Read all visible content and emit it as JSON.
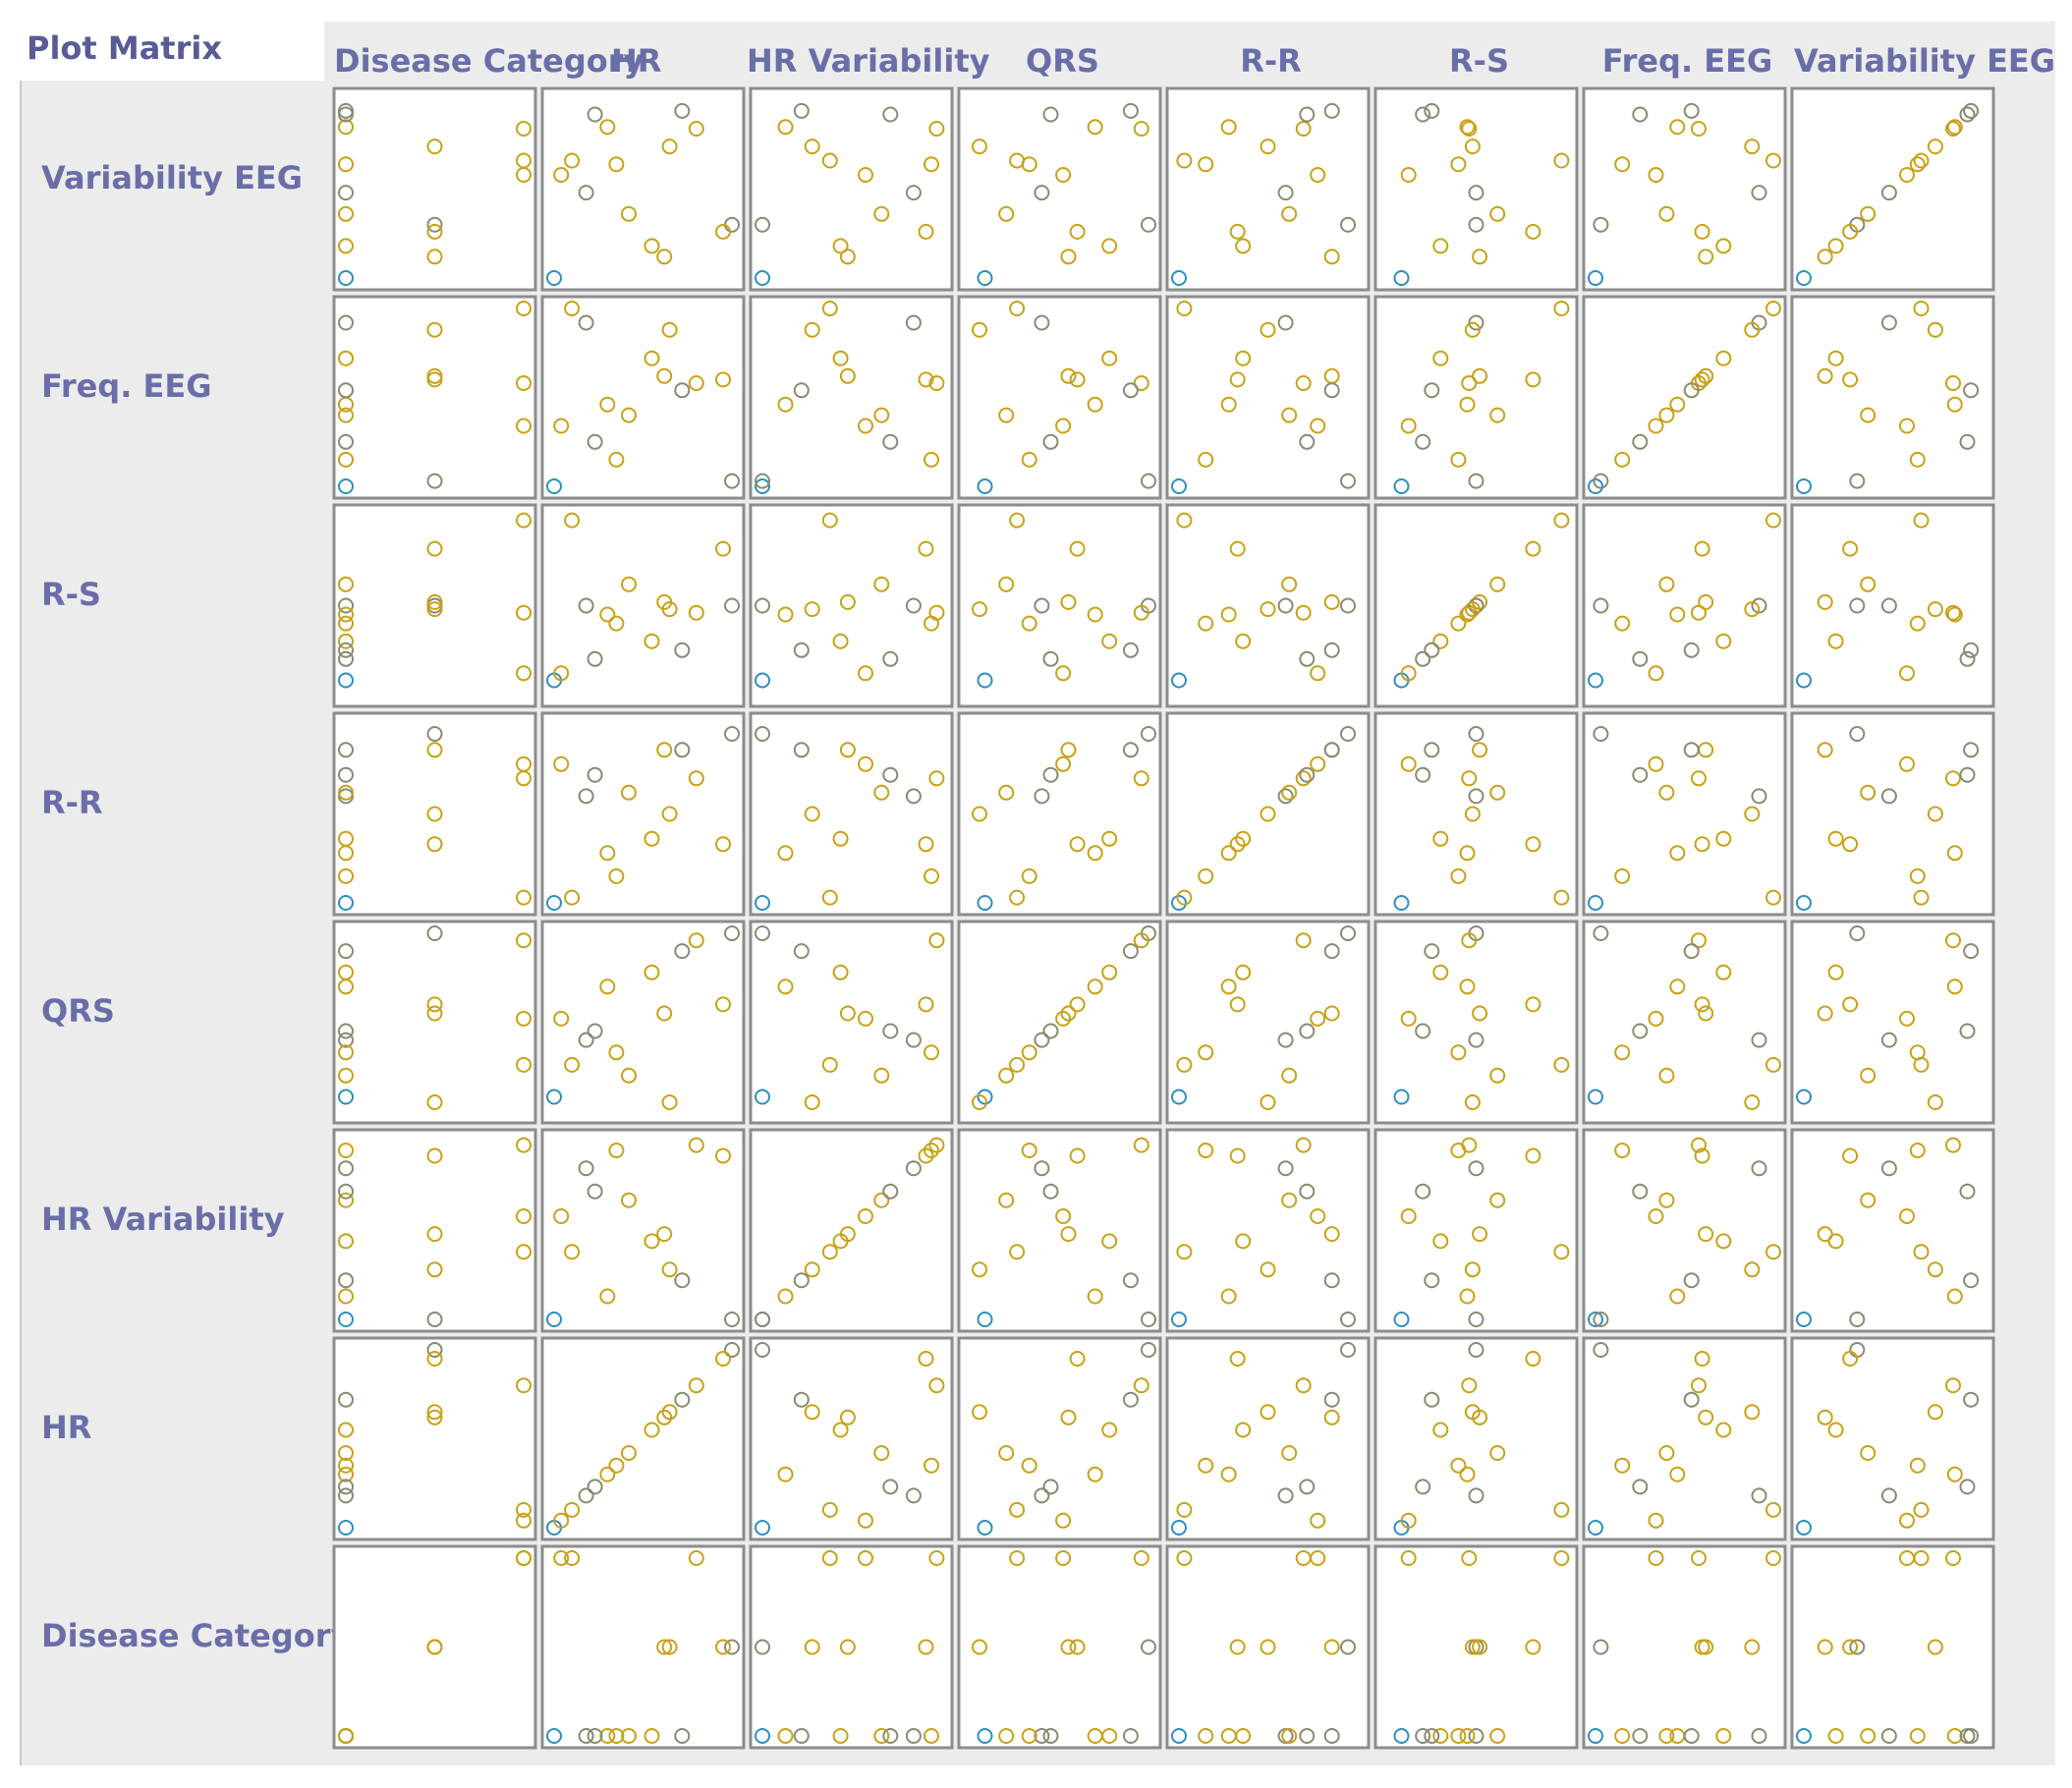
{
  "title": "Plot Matrix",
  "columns": [
    "Disease Category",
    "HR",
    "HR Variability",
    "QRS",
    "R-R",
    "R-S",
    "Freq. EEG",
    "Variability EEG"
  ],
  "rows": [
    "Variability EEG",
    "Freq. EEG",
    "R-S",
    "R-R",
    "QRS",
    "HR Variability",
    "HR",
    "Disease Category"
  ],
  "colors": {
    "point_main": "#c9a116",
    "point_gray": "#8a8a72",
    "point_blue": "#2c8fc0",
    "cell_border": "#8c8c8c",
    "label": "#6a6ea8",
    "title": "#585b96",
    "background": "#ececec"
  },
  "chart_data": {
    "type": "scatter",
    "subtype": "scatter-matrix",
    "title": "Plot Matrix",
    "variables": [
      "Disease Category",
      "HR",
      "HR Variability",
      "QRS",
      "R-R",
      "R-S",
      "Freq. EEG",
      "Variability EEG"
    ],
    "row_order": [
      "Variability EEG",
      "Freq. EEG",
      "R-S",
      "R-R",
      "QRS",
      "HR Variability",
      "HR",
      "Disease Category"
    ],
    "value_range": [
      0,
      1
    ],
    "marker": "open-circle",
    "records": [
      [
        0.0,
        0.0,
        0.0,
        0.08,
        0.0,
        0.08,
        0.0,
        0.0
      ],
      [
        0.5,
        1.0,
        0.0,
        1.0,
        0.95,
        0.5,
        0.03,
        0.3
      ],
      [
        0.5,
        0.62,
        0.48,
        0.55,
        0.86,
        0.52,
        0.62,
        0.12
      ],
      [
        1.0,
        0.1,
        0.38,
        0.26,
        0.03,
        0.98,
        1.0,
        0.66
      ],
      [
        1.0,
        0.8,
        0.98,
        0.96,
        0.7,
        0.46,
        0.58,
        0.84
      ],
      [
        0.0,
        0.18,
        0.85,
        0.4,
        0.6,
        0.5,
        0.92,
        0.48
      ],
      [
        0.0,
        0.3,
        0.13,
        0.7,
        0.28,
        0.45,
        0.46,
        0.85
      ],
      [
        0.0,
        0.42,
        0.67,
        0.2,
        0.62,
        0.62,
        0.4,
        0.36
      ],
      [
        0.5,
        0.95,
        0.92,
        0.6,
        0.33,
        0.82,
        0.6,
        0.26
      ],
      [
        0.0,
        0.23,
        0.72,
        0.45,
        0.72,
        0.2,
        0.25,
        0.92
      ],
      [
        0.5,
        0.65,
        0.28,
        0.05,
        0.5,
        0.48,
        0.88,
        0.74
      ],
      [
        1.0,
        0.04,
        0.58,
        0.52,
        0.78,
        0.12,
        0.34,
        0.58
      ],
      [
        0.0,
        0.55,
        0.44,
        0.78,
        0.36,
        0.3,
        0.72,
        0.18
      ],
      [
        0.0,
        0.72,
        0.22,
        0.9,
        0.86,
        0.25,
        0.54,
        0.94
      ],
      [
        0.0,
        0.35,
        0.95,
        0.33,
        0.15,
        0.4,
        0.15,
        0.64
      ]
    ]
  }
}
